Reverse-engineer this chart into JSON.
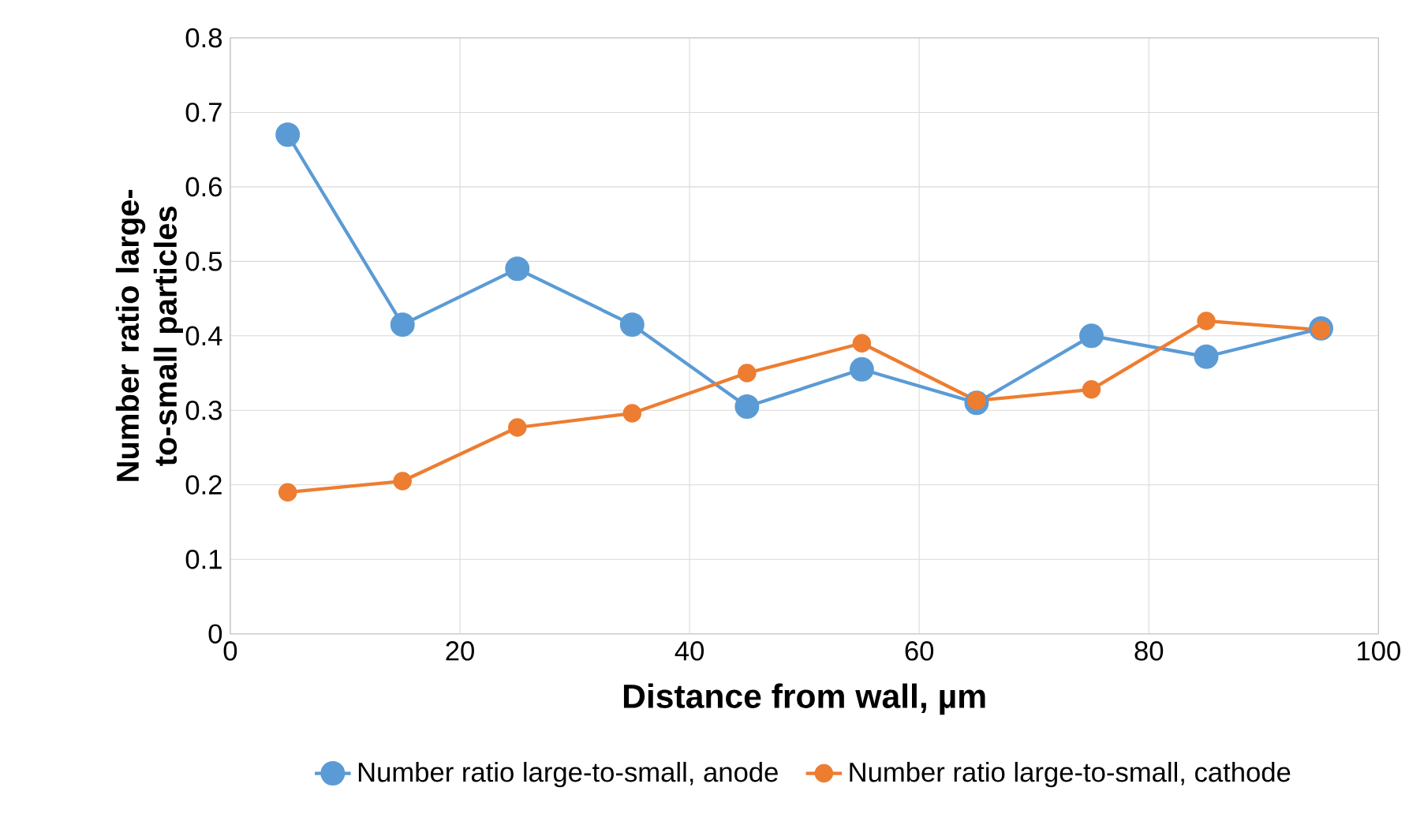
{
  "chart_data": {
    "type": "line",
    "xlabel": "Distance from wall, µm",
    "ylabel": "Number ratio large-to-small particles",
    "x": [
      5,
      15,
      25,
      35,
      45,
      55,
      65,
      75,
      85,
      95
    ],
    "series": [
      {
        "name": "Number ratio large-to-small, anode",
        "color": "#5b9bd5",
        "values": [
          0.67,
          0.415,
          0.49,
          0.415,
          0.305,
          0.355,
          0.31,
          0.4,
          0.372,
          0.41
        ]
      },
      {
        "name": "Number ratio large-to-small, cathode",
        "color": "#ed7d31",
        "values": [
          0.19,
          0.205,
          0.277,
          0.296,
          0.35,
          0.39,
          0.313,
          0.328,
          0.42,
          0.408
        ]
      }
    ],
    "xlim": [
      0,
      100
    ],
    "ylim": [
      0,
      0.8
    ],
    "xticks": [
      0,
      20,
      40,
      60,
      80,
      100
    ],
    "yticks": [
      0,
      0.1,
      0.2,
      0.3,
      0.4,
      0.5,
      0.6,
      0.7,
      0.8
    ],
    "grid": true,
    "legend": "bottom",
    "marker": "circle",
    "line_style": "solid"
  }
}
